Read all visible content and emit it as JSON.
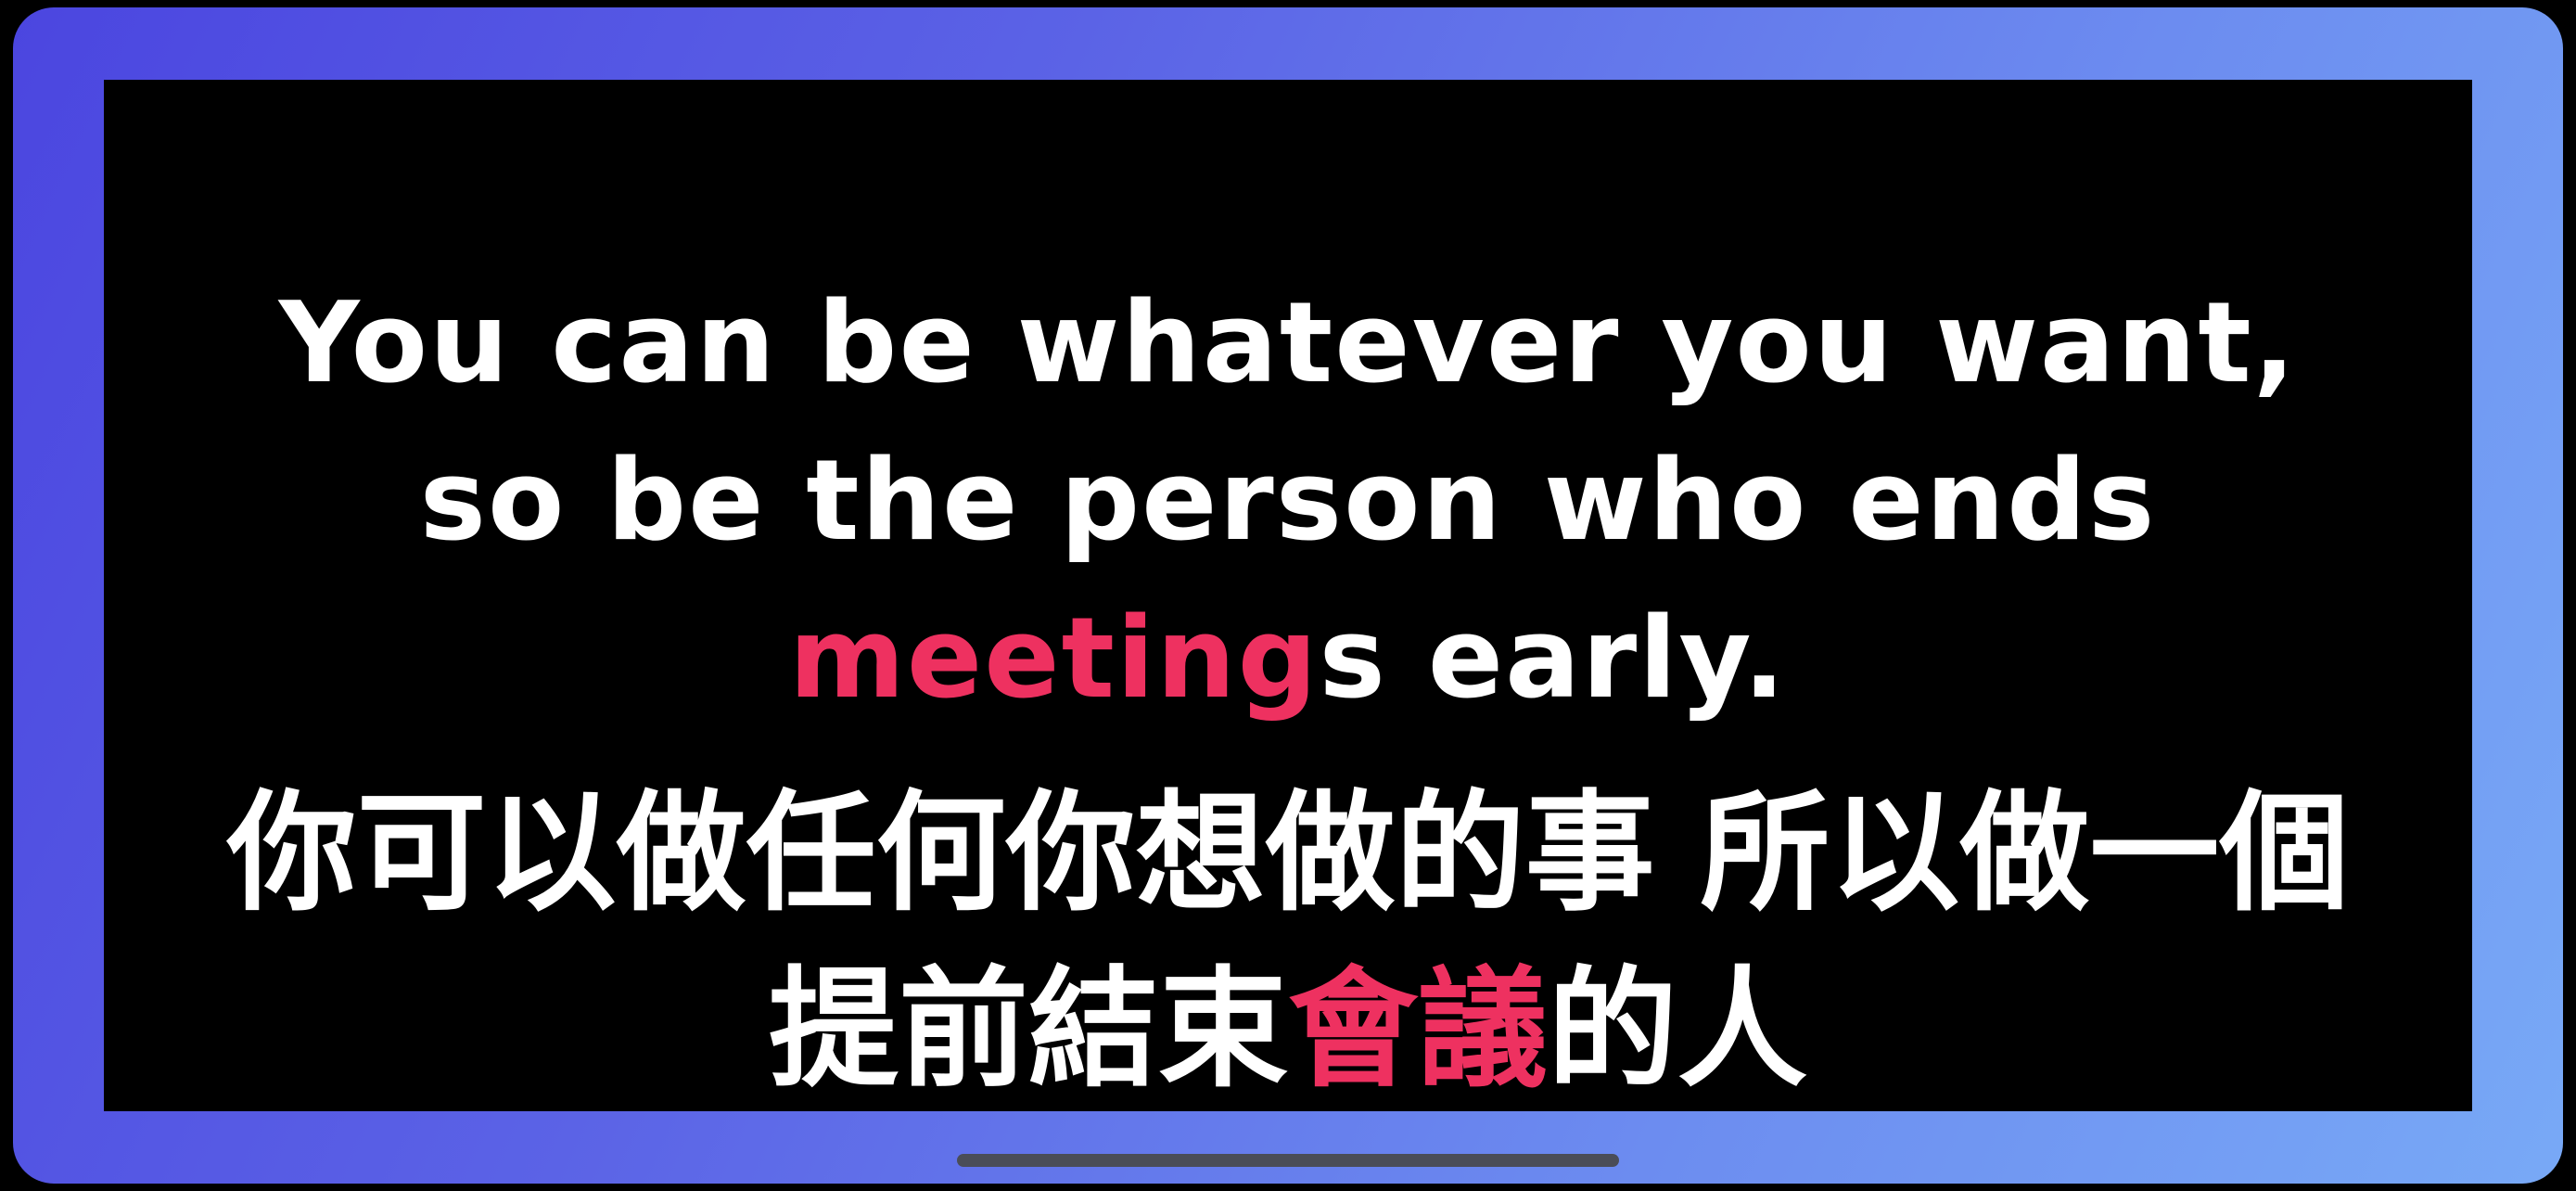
{
  "colors": {
    "highlight": "#ee3160",
    "text": "#ffffff",
    "background": "#000000",
    "bezel_gradient": [
      "#4b46e0",
      "#78a9f6"
    ]
  },
  "subtitle_en": {
    "line1": "You can be whatever you want,",
    "line2": "so be the person who ends",
    "line3_highlight": "meeting",
    "line3_rest": "s early."
  },
  "subtitle_zh": {
    "line1": "你可以做任何你想做的事 所以做一個",
    "line2_before": "提前結束",
    "line2_highlight": "會議",
    "line2_after": "的人"
  }
}
